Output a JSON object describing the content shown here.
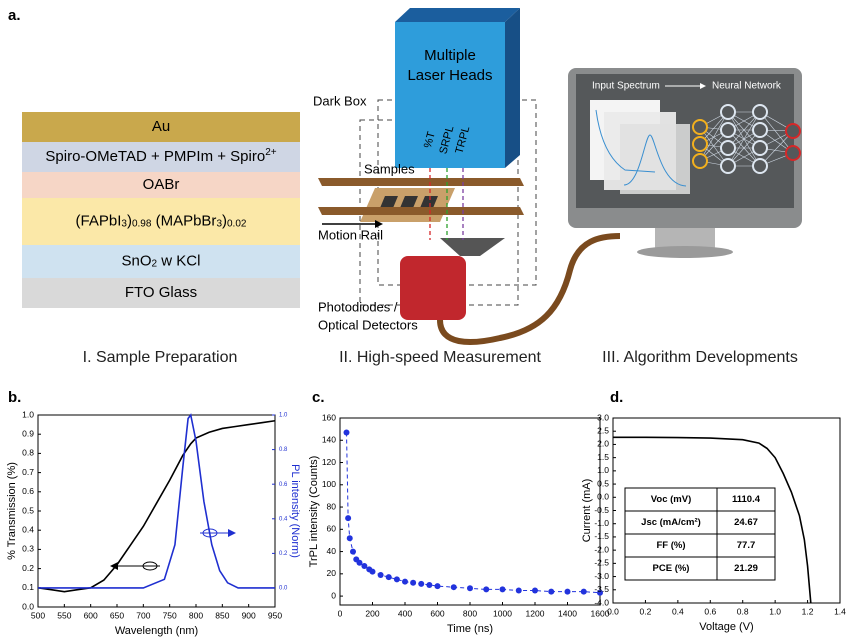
{
  "panel_labels": [
    "a.",
    "b.",
    "c.",
    "d."
  ],
  "stack": {
    "layers": [
      {
        "parts": [
          "Au"
        ],
        "color": "#c9a84c"
      },
      {
        "parts": [
          "Spiro-OMeTAD + PMPIm + Spiro",
          "2+"
        ],
        "script": "sup",
        "color": "#cfd6e4"
      },
      {
        "parts": [
          "OABr"
        ],
        "color": "#f6d6c6"
      },
      {
        "parts": [
          "(FAPbI",
          "3",
          ")",
          "0.98",
          " (MAPbBr",
          "3",
          ")",
          "0.02"
        ],
        "script": "sub",
        "color": "#fbe8a8"
      },
      {
        "parts": [
          "SnO",
          "2",
          " w KCl"
        ],
        "script": "sub",
        "color": "#cfe2f0"
      },
      {
        "parts": [
          "FTO Glass"
        ],
        "color": "#d9d9d9"
      }
    ]
  },
  "diagram": {
    "laser": [
      "Multiple",
      "Laser Heads"
    ],
    "dark_box": "Dark Box",
    "beams": [
      "%T",
      "SRPL",
      "TRPL"
    ],
    "beam_colors": [
      "#d62728",
      "#2ca02c",
      "#7b3fa0"
    ],
    "samples": "Samples",
    "rail": "Motion Rail",
    "detector": [
      "Photodiodes /",
      "Optical Detectors"
    ],
    "input": "Input Spectrum",
    "network": "Neural Network"
  },
  "captions": [
    "I. Sample Preparation",
    "II. High-speed Measurement",
    "III. Algorithm Developments"
  ],
  "chart_data": [
    {
      "type": "line",
      "x_label": "Wavelength (nm)",
      "y_label": "% Transmission (%)",
      "y2_label": "PL intensity (Norm)",
      "xlim": [
        500,
        950
      ],
      "xticks": [
        500,
        550,
        600,
        650,
        700,
        750,
        800,
        850,
        900,
        950
      ],
      "ylim": [
        0,
        1.0
      ],
      "yticks": [
        {
          "value": 0,
          "label": "0.0"
        },
        0.1,
        0.2,
        0.3,
        0.4,
        0.5,
        0.6,
        0.7,
        0.8,
        0.9,
        {
          "value": 1,
          "label": "1.0"
        }
      ],
      "y2lim": [
        -0.11,
        1.0
      ],
      "y2ticks": [
        {
          "value": 0,
          "label": "0.0"
        },
        0.2,
        0.4,
        0.6,
        0.8,
        {
          "value": 1,
          "label": "1.0"
        }
      ],
      "series": [
        {
          "color": "#000000",
          "x": [
            500,
            525,
            550,
            575,
            600,
            625,
            650,
            675,
            700,
            725,
            750,
            775,
            790,
            800,
            825,
            850,
            875,
            900,
            925,
            950
          ],
          "values": [
            0.1,
            0.09,
            0.08,
            0.09,
            0.1,
            0.14,
            0.22,
            0.32,
            0.42,
            0.54,
            0.66,
            0.79,
            0.85,
            0.88,
            0.91,
            0.93,
            0.94,
            0.95,
            0.96,
            0.97
          ]
        },
        {
          "color": "#1f2fd0",
          "axis": "y2",
          "x": [
            500,
            600,
            700,
            740,
            760,
            775,
            785,
            790,
            800,
            815,
            830,
            845,
            860,
            880,
            950
          ],
          "values": [
            0,
            0,
            0,
            0.05,
            0.25,
            0.7,
            0.98,
            1.0,
            0.85,
            0.5,
            0.25,
            0.1,
            0.03,
            0,
            0
          ]
        }
      ]
    },
    {
      "type": "scatter",
      "x_label": "Time (ns)",
      "y_label": "TrPL intensity (Counts)",
      "xlim": [
        0,
        1600
      ],
      "xticks": [
        0,
        200,
        400,
        600,
        800,
        1000,
        1200,
        1400,
        1600
      ],
      "ylim": [
        -8,
        160
      ],
      "yticks": [
        0,
        20,
        40,
        60,
        80,
        100,
        120,
        140,
        160
      ],
      "linestyle": "dashed",
      "series": [
        {
          "color": "#2233dd",
          "x": [
            40,
            50,
            60,
            80,
            100,
            120,
            150,
            180,
            200,
            250,
            300,
            350,
            400,
            450,
            500,
            550,
            600,
            700,
            800,
            900,
            1000,
            1100,
            1200,
            1300,
            1400,
            1500,
            1600
          ],
          "values": [
            147,
            70,
            52,
            40,
            33,
            30,
            27,
            24,
            22,
            19,
            17,
            15,
            13,
            12,
            11,
            10,
            9,
            8,
            7,
            6,
            6,
            5,
            5,
            4,
            4,
            4,
            3
          ]
        }
      ]
    },
    {
      "type": "line",
      "x_label": "Voltage (V)",
      "y_label": "Current (mA)",
      "xlim": [
        0,
        1.4
      ],
      "xticks": [
        {
          "value": 0,
          "label": "0.0"
        },
        0.2,
        0.4,
        0.6,
        0.8,
        {
          "value": 1,
          "label": "1.0"
        },
        1.2,
        1.4
      ],
      "ylim": [
        -4,
        3
      ],
      "yticks": [
        {
          "value": -4,
          "label": "-4.0"
        },
        -3.5,
        {
          "value": -3,
          "label": "-3.0"
        },
        -2.5,
        {
          "value": -2,
          "label": "-2.0"
        },
        -1.5,
        {
          "value": -1,
          "label": "-1.0"
        },
        -0.5,
        {
          "value": 0,
          "label": "0.0"
        },
        0.5,
        {
          "value": 1,
          "label": "1.0"
        },
        1.5,
        {
          "value": 2,
          "label": "2.0"
        },
        2.5,
        {
          "value": 3,
          "label": "3.0"
        }
      ],
      "series": [
        {
          "color": "#000000",
          "x": [
            0,
            0.2,
            0.4,
            0.6,
            0.8,
            0.9,
            0.95,
            1.0,
            1.05,
            1.1,
            1.15,
            1.18,
            1.2,
            1.22
          ],
          "values": [
            2.27,
            2.27,
            2.26,
            2.24,
            2.18,
            2.05,
            1.85,
            1.5,
            0.9,
            0.2,
            -0.7,
            -1.6,
            -2.6,
            -4.0
          ]
        }
      ],
      "table": {
        "rows": [
          [
            "Voc (mV)",
            "1110.4"
          ],
          [
            "Jsc (mA/cm²)",
            "24.67"
          ],
          [
            "FF (%)",
            "77.7"
          ],
          [
            "PCE (%)",
            "21.29"
          ]
        ]
      }
    }
  ]
}
